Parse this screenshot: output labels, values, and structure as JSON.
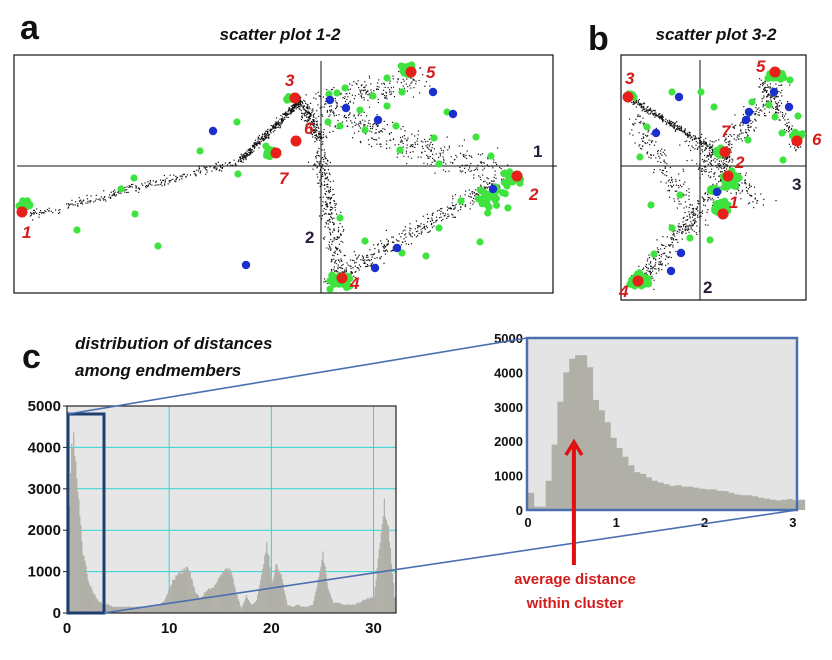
{
  "colors": {
    "cloud": "#111111",
    "green_points": "#3ee33e",
    "blue_points": "#1a2fcc",
    "endmember": "#e8201a",
    "label_red": "#d31c1c",
    "histogram_fill": "#b0b0a8",
    "plot_background": "#e6e6e6",
    "grid": "#2fd4d4",
    "zoom_link": "#4a6fb0"
  },
  "chart_data": [
    {
      "type": "scatter",
      "panel": "a",
      "title": "scatter plot 1-2",
      "xlabel": "1",
      "ylabel": "2",
      "endmember_labels": [
        "1",
        "2",
        "3",
        "4",
        "5",
        "6",
        "7"
      ],
      "series": [
        "cloud",
        "green",
        "blue",
        "endmembers"
      ]
    },
    {
      "type": "scatter",
      "panel": "b",
      "title": "scatter plot 3-2",
      "xlabel": "3",
      "ylabel": "2",
      "endmember_labels": [
        "1",
        "2",
        "3",
        "4",
        "5",
        "6",
        "7"
      ],
      "series": [
        "cloud",
        "green",
        "blue",
        "endmembers"
      ]
    },
    {
      "type": "bar",
      "panel": "c",
      "title": "distribution of distances among endmembers",
      "title_lines": [
        "distribution of distances",
        "among endmembers"
      ],
      "xlim": [
        0,
        32.2
      ],
      "ylim": [
        0,
        5000
      ],
      "xticks": [
        "0",
        "10",
        "20",
        "30"
      ],
      "yticks": [
        "0",
        "1000",
        "2000",
        "3000",
        "4000",
        "5000"
      ],
      "grid": true,
      "x": [
        0,
        0.5,
        1,
        1.5,
        2,
        2.5,
        3,
        3.5,
        4,
        4.5,
        5,
        5.5,
        6,
        6.5,
        7,
        7.5,
        8,
        8.5,
        9,
        9.5,
        10,
        10.5,
        11,
        11.5,
        12,
        12.5,
        13,
        13.5,
        14,
        14.5,
        15,
        15.5,
        16,
        16.5,
        17,
        17.5,
        18,
        18.5,
        19,
        19.5,
        20,
        20.5,
        21,
        21.5,
        22,
        22.5,
        23,
        23.5,
        24,
        24.5,
        25,
        25.5,
        26,
        26.5,
        27,
        27.5,
        28,
        28.5,
        29,
        29.5,
        30,
        30.5,
        31,
        31.5,
        32
      ],
      "values": [
        1500,
        4500,
        3000,
        1500,
        800,
        500,
        300,
        200,
        200,
        150,
        150,
        150,
        150,
        150,
        150,
        150,
        150,
        150,
        200,
        300,
        600,
        900,
        1000,
        1100,
        1000,
        500,
        350,
        500,
        600,
        700,
        900,
        1100,
        1050,
        500,
        100,
        400,
        200,
        300,
        900,
        1700,
        700,
        1200,
        800,
        200,
        150,
        200,
        150,
        150,
        200,
        700,
        1400,
        600,
        250,
        250,
        200,
        200,
        200,
        250,
        300,
        350,
        400,
        1500,
        2600,
        1800,
        400
      ]
    },
    {
      "type": "bar",
      "panel": "c-zoom",
      "xlim": [
        0,
        3.1
      ],
      "ylim": [
        0,
        5000
      ],
      "xticks": [
        "0",
        "1",
        "2",
        "3"
      ],
      "yticks": [
        "0",
        "1000",
        "2000",
        "3000",
        "4000",
        "5000"
      ],
      "bin_width": 0.0667,
      "values": [
        500,
        100,
        100,
        850,
        1900,
        3150,
        4000,
        4400,
        4500,
        4500,
        4150,
        3200,
        2900,
        2550,
        2100,
        1800,
        1550,
        1300,
        1100,
        1050,
        950,
        850,
        800,
        750,
        700,
        720,
        680,
        680,
        650,
        620,
        600,
        600,
        560,
        550,
        500,
        450,
        430,
        430,
        400,
        360,
        330,
        300,
        280,
        300,
        320,
        280,
        300
      ],
      "annotation": [
        "average distance",
        "within cluster"
      ],
      "annotation_x": 0.52
    }
  ],
  "panels": {
    "a": "a",
    "b": "b",
    "c": "c"
  }
}
